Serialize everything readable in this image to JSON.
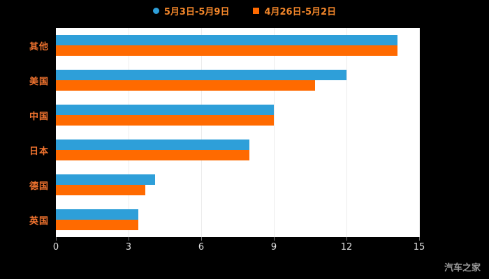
{
  "watermark": "汽车之家",
  "colors": {
    "background": "#000000",
    "plot_background": "#ffffff",
    "grid": "#ececec",
    "category_label": "#f2742f",
    "legend_text": "#f2862a",
    "axis_tick_label": "#e0e0e0",
    "watermark": "#9a9a9a"
  },
  "chart_data": {
    "type": "bar",
    "orientation": "horizontal",
    "title": "",
    "xlabel": "",
    "ylabel": "",
    "categories": [
      "其他",
      "美国",
      "中国",
      "日本",
      "德国",
      "英国"
    ],
    "series": [
      {
        "name": "5月3日-5月9日",
        "color": "#2E9FD9",
        "marker": "dot",
        "values": [
          14.1,
          12.0,
          9.0,
          8.0,
          4.1,
          3.4
        ]
      },
      {
        "name": "4月26日-5月2日",
        "color": "#FF6A00",
        "marker": "square",
        "values": [
          14.1,
          10.7,
          9.0,
          8.0,
          3.7,
          3.4
        ]
      }
    ],
    "xlim": [
      0,
      15
    ],
    "x_ticks": [
      0,
      3,
      6,
      9,
      12,
      15
    ],
    "legend_position": "top",
    "grid": true
  }
}
